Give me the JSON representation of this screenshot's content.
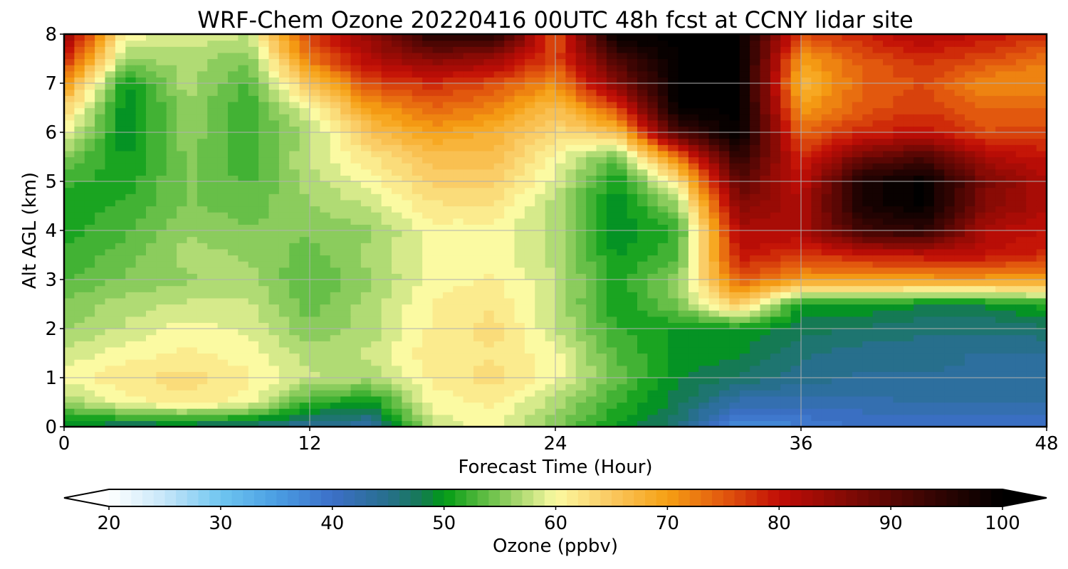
{
  "chart_data": {
    "type": "heatmap",
    "title": "WRF-Chem Ozone  20220416 00UTC 48h fcst at CCNY lidar site",
    "xlabel": "Forecast Time (Hour)",
    "ylabel": "Alt AGL (km)",
    "xlim": [
      0,
      48
    ],
    "ylim": [
      0,
      8
    ],
    "xticks": [
      0,
      12,
      24,
      36,
      48
    ],
    "yticks": [
      0,
      1,
      2,
      3,
      4,
      5,
      6,
      7,
      8
    ],
    "grid": true,
    "x": [
      0,
      3,
      6,
      9,
      12,
      15,
      18,
      21,
      24,
      27,
      30,
      33,
      36,
      39,
      42,
      45,
      48
    ],
    "y": [
      0,
      0.5,
      1,
      1.5,
      2,
      2.5,
      3,
      3.5,
      4,
      4.5,
      5,
      5.5,
      6,
      6.5,
      7,
      7.5,
      8
    ],
    "z": [
      [
        48,
        47,
        47,
        46,
        44,
        43,
        58,
        60,
        55,
        50,
        46,
        36,
        38,
        40,
        40,
        40,
        40
      ],
      [
        56,
        60,
        62,
        60,
        52,
        50,
        60,
        61,
        57,
        52,
        48,
        42,
        42,
        42,
        43,
        43,
        43
      ],
      [
        60,
        62,
        63,
        61,
        58,
        57,
        61,
        63,
        60,
        54,
        49,
        47,
        45,
        44,
        44,
        44,
        44
      ],
      [
        58,
        60,
        61,
        60,
        57,
        58,
        62,
        62,
        60,
        53,
        50,
        49,
        46,
        45,
        45,
        44,
        44
      ],
      [
        56,
        58,
        60,
        59,
        55,
        57,
        61,
        63,
        58,
        52,
        50,
        50,
        48,
        47,
        46,
        46,
        47
      ],
      [
        55,
        57,
        58,
        58,
        54,
        57,
        61,
        62,
        58,
        50,
        55,
        65,
        50,
        50,
        49,
        49,
        51
      ],
      [
        53,
        55,
        56,
        57,
        53,
        56,
        60,
        61,
        58,
        51,
        56,
        75,
        70,
        70,
        70,
        70,
        70
      ],
      [
        52,
        54,
        57,
        56,
        54,
        57,
        60,
        60,
        57,
        50,
        53,
        80,
        77,
        79,
        80,
        80,
        78
      ],
      [
        51,
        53,
        56,
        55,
        55,
        56,
        60,
        60,
        57,
        49,
        52,
        82,
        82,
        93,
        95,
        82,
        80
      ],
      [
        51,
        52,
        55,
        54,
        56,
        58,
        62,
        62,
        57,
        49,
        56,
        86,
        82,
        97,
        100,
        86,
        82
      ],
      [
        52,
        51,
        55,
        53,
        57,
        60,
        64,
        64,
        59,
        50,
        62,
        90,
        80,
        97,
        100,
        87,
        82
      ],
      [
        55,
        50,
        55,
        52,
        58,
        62,
        66,
        66,
        60,
        54,
        73,
        95,
        78,
        88,
        92,
        82,
        80
      ],
      [
        60,
        49,
        56,
        52,
        57,
        66,
        70,
        68,
        63,
        66,
        92,
        100,
        74,
        78,
        80,
        76,
        76
      ],
      [
        64,
        49,
        56,
        52,
        60,
        70,
        74,
        72,
        66,
        76,
        100,
        100,
        70,
        75,
        77,
        74,
        74
      ],
      [
        71,
        50,
        57,
        53,
        66,
        76,
        78,
        76,
        71,
        86,
        100,
        100,
        67,
        74,
        76,
        71,
        71
      ],
      [
        79,
        56,
        57,
        55,
        73,
        82,
        86,
        84,
        76,
        92,
        100,
        100,
        70,
        75,
        78,
        76,
        73
      ],
      [
        86,
        60,
        59,
        58,
        77,
        85,
        96,
        96,
        75,
        100,
        100,
        100,
        76,
        79,
        82,
        80,
        78
      ]
    ],
    "colorbar": {
      "label": "Ozone  (ppbv)",
      "min": 20,
      "max": 100,
      "ticks": [
        20,
        30,
        40,
        50,
        60,
        70,
        80,
        90,
        100
      ],
      "extend": "both",
      "colors": [
        {
          "v": 20,
          "c": "#ffffff"
        },
        {
          "v": 25,
          "c": "#c6e6f9"
        },
        {
          "v": 30,
          "c": "#6fc6f0"
        },
        {
          "v": 35,
          "c": "#4a9ee3"
        },
        {
          "v": 40,
          "c": "#3c6fc8"
        },
        {
          "v": 45,
          "c": "#276f8c"
        },
        {
          "v": 48,
          "c": "#157a54"
        },
        {
          "v": 50,
          "c": "#009b14"
        },
        {
          "v": 53,
          "c": "#4fb73a"
        },
        {
          "v": 56,
          "c": "#97d064"
        },
        {
          "v": 60,
          "c": "#fbfaa2"
        },
        {
          "v": 65,
          "c": "#fac860"
        },
        {
          "v": 70,
          "c": "#f6a013"
        },
        {
          "v": 75,
          "c": "#e2580e"
        },
        {
          "v": 80,
          "c": "#c20d06"
        },
        {
          "v": 85,
          "c": "#8e0b05"
        },
        {
          "v": 90,
          "c": "#5a0704"
        },
        {
          "v": 95,
          "c": "#2a0402"
        },
        {
          "v": 100,
          "c": "#000000"
        }
      ]
    }
  }
}
